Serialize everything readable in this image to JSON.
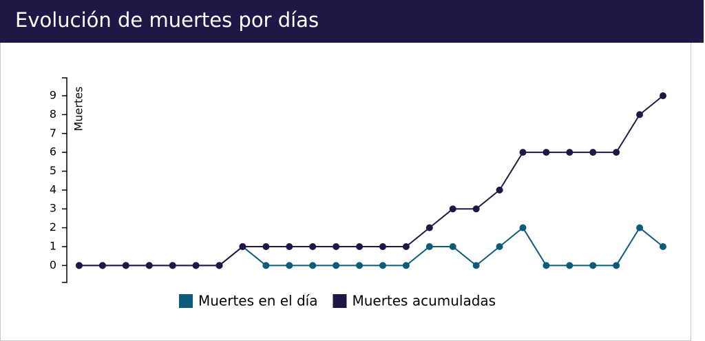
{
  "chart_data": {
    "type": "line",
    "title": "Evolución de muertes por días",
    "y_label": "Muertes",
    "categories": [
      null,
      null,
      null,
      null,
      null,
      null,
      null,
      null,
      null,
      null,
      null,
      null,
      null,
      null,
      null,
      null,
      null,
      null,
      null,
      null,
      null,
      null,
      null,
      null,
      null,
      null
    ],
    "series": [
      {
        "name": "Muertes en el día",
        "color": "#0d5b7a",
        "values": [
          0,
          0,
          0,
          0,
          0,
          0,
          0,
          1,
          0,
          0,
          0,
          0,
          0,
          0,
          0,
          1,
          1,
          0,
          1,
          2,
          0,
          0,
          0,
          0,
          2,
          1
        ]
      },
      {
        "name": "Muertes acumuladas",
        "color": "#1f1846",
        "values": [
          0,
          0,
          0,
          0,
          0,
          0,
          0,
          1,
          1,
          1,
          1,
          1,
          1,
          1,
          1,
          2,
          3,
          3,
          4,
          6,
          6,
          6,
          6,
          6,
          8,
          9
        ]
      }
    ],
    "ylim": [
      -0.9,
      9.95
    ],
    "yticks": [
      0,
      1,
      2,
      3,
      4,
      5,
      6,
      7,
      8,
      9
    ],
    "legend": "bottom"
  }
}
